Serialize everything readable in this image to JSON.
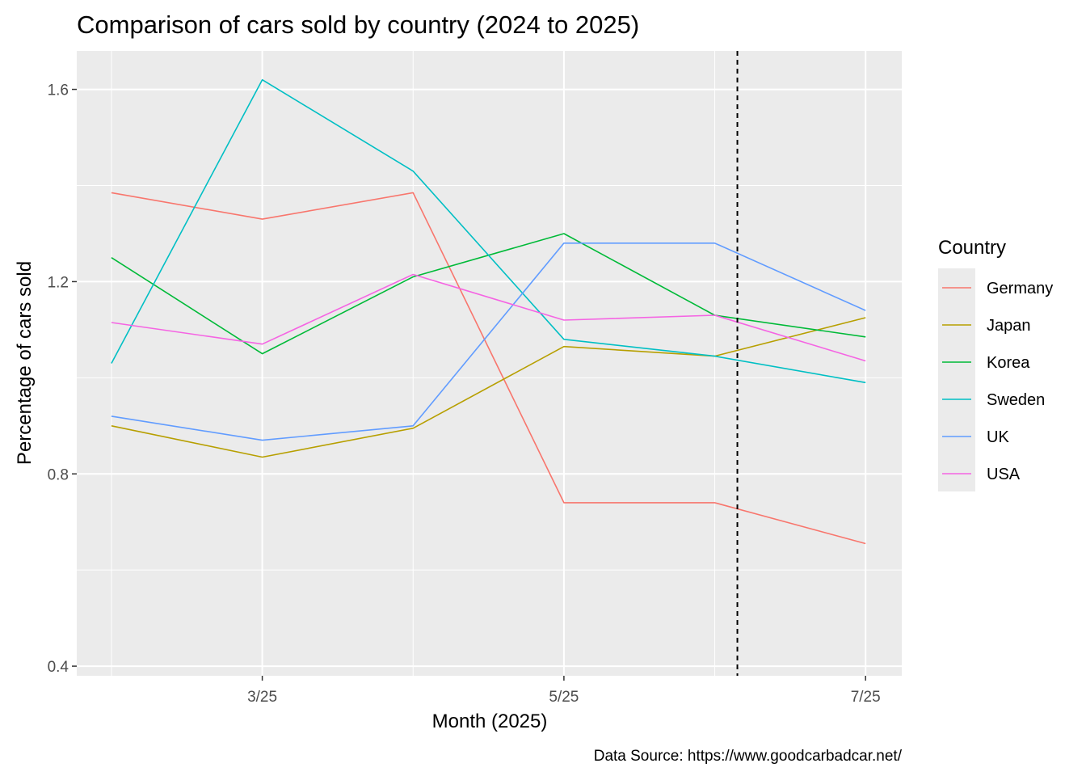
{
  "chart_data": {
    "type": "line",
    "title": "Comparison of cars sold by country (2024 to 2025)",
    "xlabel": "Month (2025)",
    "ylabel": "Percentage of cars sold",
    "caption": "Data Source: https://www.goodcarbadcar.net/",
    "x": [
      2,
      3,
      4,
      5,
      6,
      7
    ],
    "xlim": [
      1.77,
      7.24
    ],
    "ylim": [
      0.38,
      1.68
    ],
    "x_ticks": [
      {
        "value": 3,
        "label": "3/25"
      },
      {
        "value": 5,
        "label": "5/25"
      },
      {
        "value": 7,
        "label": "7/25"
      }
    ],
    "y_ticks": [
      {
        "value": 0.4,
        "label": "0.4"
      },
      {
        "value": 0.8,
        "label": "0.8"
      },
      {
        "value": 1.2,
        "label": "1.2"
      },
      {
        "value": 1.6,
        "label": "1.6"
      }
    ],
    "x_minor_ticks": [
      2,
      4,
      6
    ],
    "y_minor_ticks": [
      0.6,
      1.0,
      1.4
    ],
    "vline": {
      "x": 6.15,
      "style": "dashed",
      "color": "#000000"
    },
    "grid": true,
    "legend": {
      "title": "Country",
      "position": "right"
    },
    "series": [
      {
        "name": "Germany",
        "color": "#F8766D",
        "values": [
          1.385,
          1.33,
          1.385,
          0.74,
          0.74,
          0.655
        ]
      },
      {
        "name": "Japan",
        "color": "#B79F00",
        "values": [
          0.9,
          0.835,
          0.895,
          1.065,
          1.045,
          1.125
        ]
      },
      {
        "name": "Korea",
        "color": "#00BA38",
        "values": [
          1.25,
          1.05,
          1.21,
          1.3,
          1.13,
          1.085
        ]
      },
      {
        "name": "Sweden",
        "color": "#00BFC4",
        "values": [
          1.03,
          1.62,
          1.43,
          1.08,
          1.045,
          0.99
        ]
      },
      {
        "name": "UK",
        "color": "#619CFF",
        "values": [
          0.92,
          0.87,
          0.9,
          1.28,
          1.28,
          1.14
        ]
      },
      {
        "name": "USA",
        "color": "#F564E3",
        "values": [
          1.115,
          1.07,
          1.215,
          1.12,
          1.13,
          1.035
        ]
      }
    ]
  }
}
